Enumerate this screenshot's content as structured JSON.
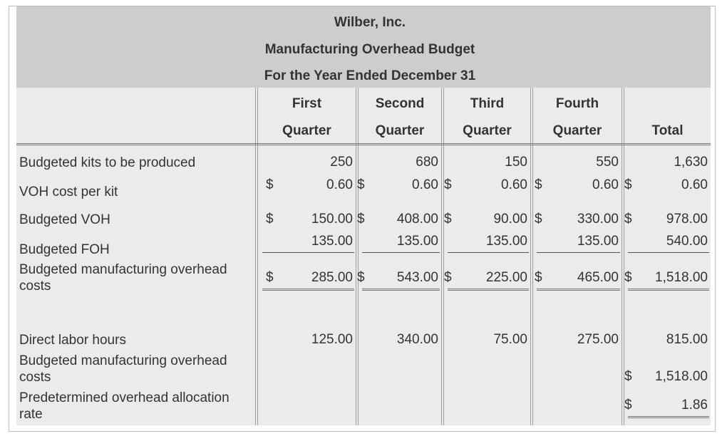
{
  "header": {
    "company": "Wilber, Inc.",
    "title": "Manufacturing Overhead Budget",
    "period": "For the Year Ended December 31"
  },
  "columns": [
    {
      "top": "First",
      "bottom": "Quarter"
    },
    {
      "top": "Second",
      "bottom": "Quarter"
    },
    {
      "top": "Third",
      "bottom": "Quarter"
    },
    {
      "top": "Fourth",
      "bottom": "Quarter"
    },
    {
      "top": "",
      "bottom": "Total"
    }
  ],
  "currency_symbol": "$",
  "rows": {
    "kits": {
      "label": "Budgeted kits to be produced",
      "values": [
        "250",
        "680",
        "150",
        "550",
        "1,630"
      ]
    },
    "voh_rate": {
      "label": "VOH cost per kit",
      "values": [
        "0.60",
        "0.60",
        "0.60",
        "0.60",
        "0.60"
      ]
    },
    "voh": {
      "label": "Budgeted VOH",
      "values": [
        "150.00",
        "408.00",
        "90.00",
        "330.00",
        "978.00"
      ]
    },
    "foh": {
      "label": "Budgeted FOH",
      "values": [
        "135.00",
        "135.00",
        "135.00",
        "135.00",
        "540.00"
      ]
    },
    "moh": {
      "label": "Budgeted manufacturing overhead costs",
      "values": [
        "285.00",
        "543.00",
        "225.00",
        "465.00",
        "1,518.00"
      ]
    },
    "dlh": {
      "label": "Direct labor hours",
      "values": [
        "125.00",
        "340.00",
        "75.00",
        "275.00",
        "815.00"
      ]
    },
    "moh_total": {
      "label": "Budgeted manufacturing overhead costs",
      "value": "1,518.00"
    },
    "poh_rate": {
      "label": "Predetermined overhead allocation rate",
      "value": "1.86"
    }
  }
}
